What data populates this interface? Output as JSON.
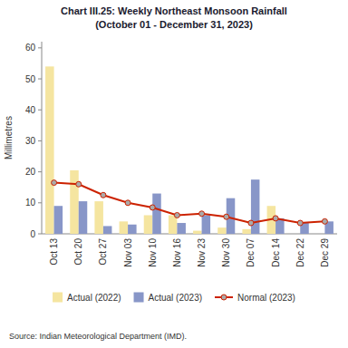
{
  "chart_data": {
    "type": "bar",
    "title": "Chart III.25: Weekly Northeast Monsoon Rainfall",
    "subtitle": "(October 01 - December 31, 2023)",
    "ylabel": "Millimetres",
    "categories": [
      "Oct 13",
      "Oct 20",
      "Oct 27",
      "Nov 03",
      "Nov 10",
      "Nov 16",
      "Nov 23",
      "Nov 30",
      "Dec 07",
      "Dec 14",
      "Dec 22",
      "Dec 29"
    ],
    "series": [
      {
        "name": "Actual (2022)",
        "type": "bar",
        "color": "#f5e5a0",
        "values": [
          54,
          20.5,
          10.5,
          4,
          6,
          6,
          1,
          2,
          1.5,
          9,
          0,
          0
        ]
      },
      {
        "name": "Actual (2023)",
        "type": "bar",
        "color": "#8896c8",
        "values": [
          9,
          10.5,
          2.5,
          3,
          13,
          3.5,
          6,
          11.5,
          17.5,
          5,
          3.5,
          4
        ]
      },
      {
        "name": "Normal (2023)",
        "type": "line",
        "color": "#cc2200",
        "marker": "circle",
        "values": [
          16.5,
          16,
          12.5,
          10,
          8.5,
          6,
          6.5,
          5.5,
          3.5,
          5,
          3.5,
          4
        ]
      }
    ],
    "ylim": [
      0,
      62
    ],
    "yticks": [
      0,
      10,
      20,
      30,
      40,
      50,
      60
    ],
    "grid": false,
    "legend": "bottom",
    "annotations": [
      "Source: Indian Meteorological Department (IMD)."
    ]
  }
}
